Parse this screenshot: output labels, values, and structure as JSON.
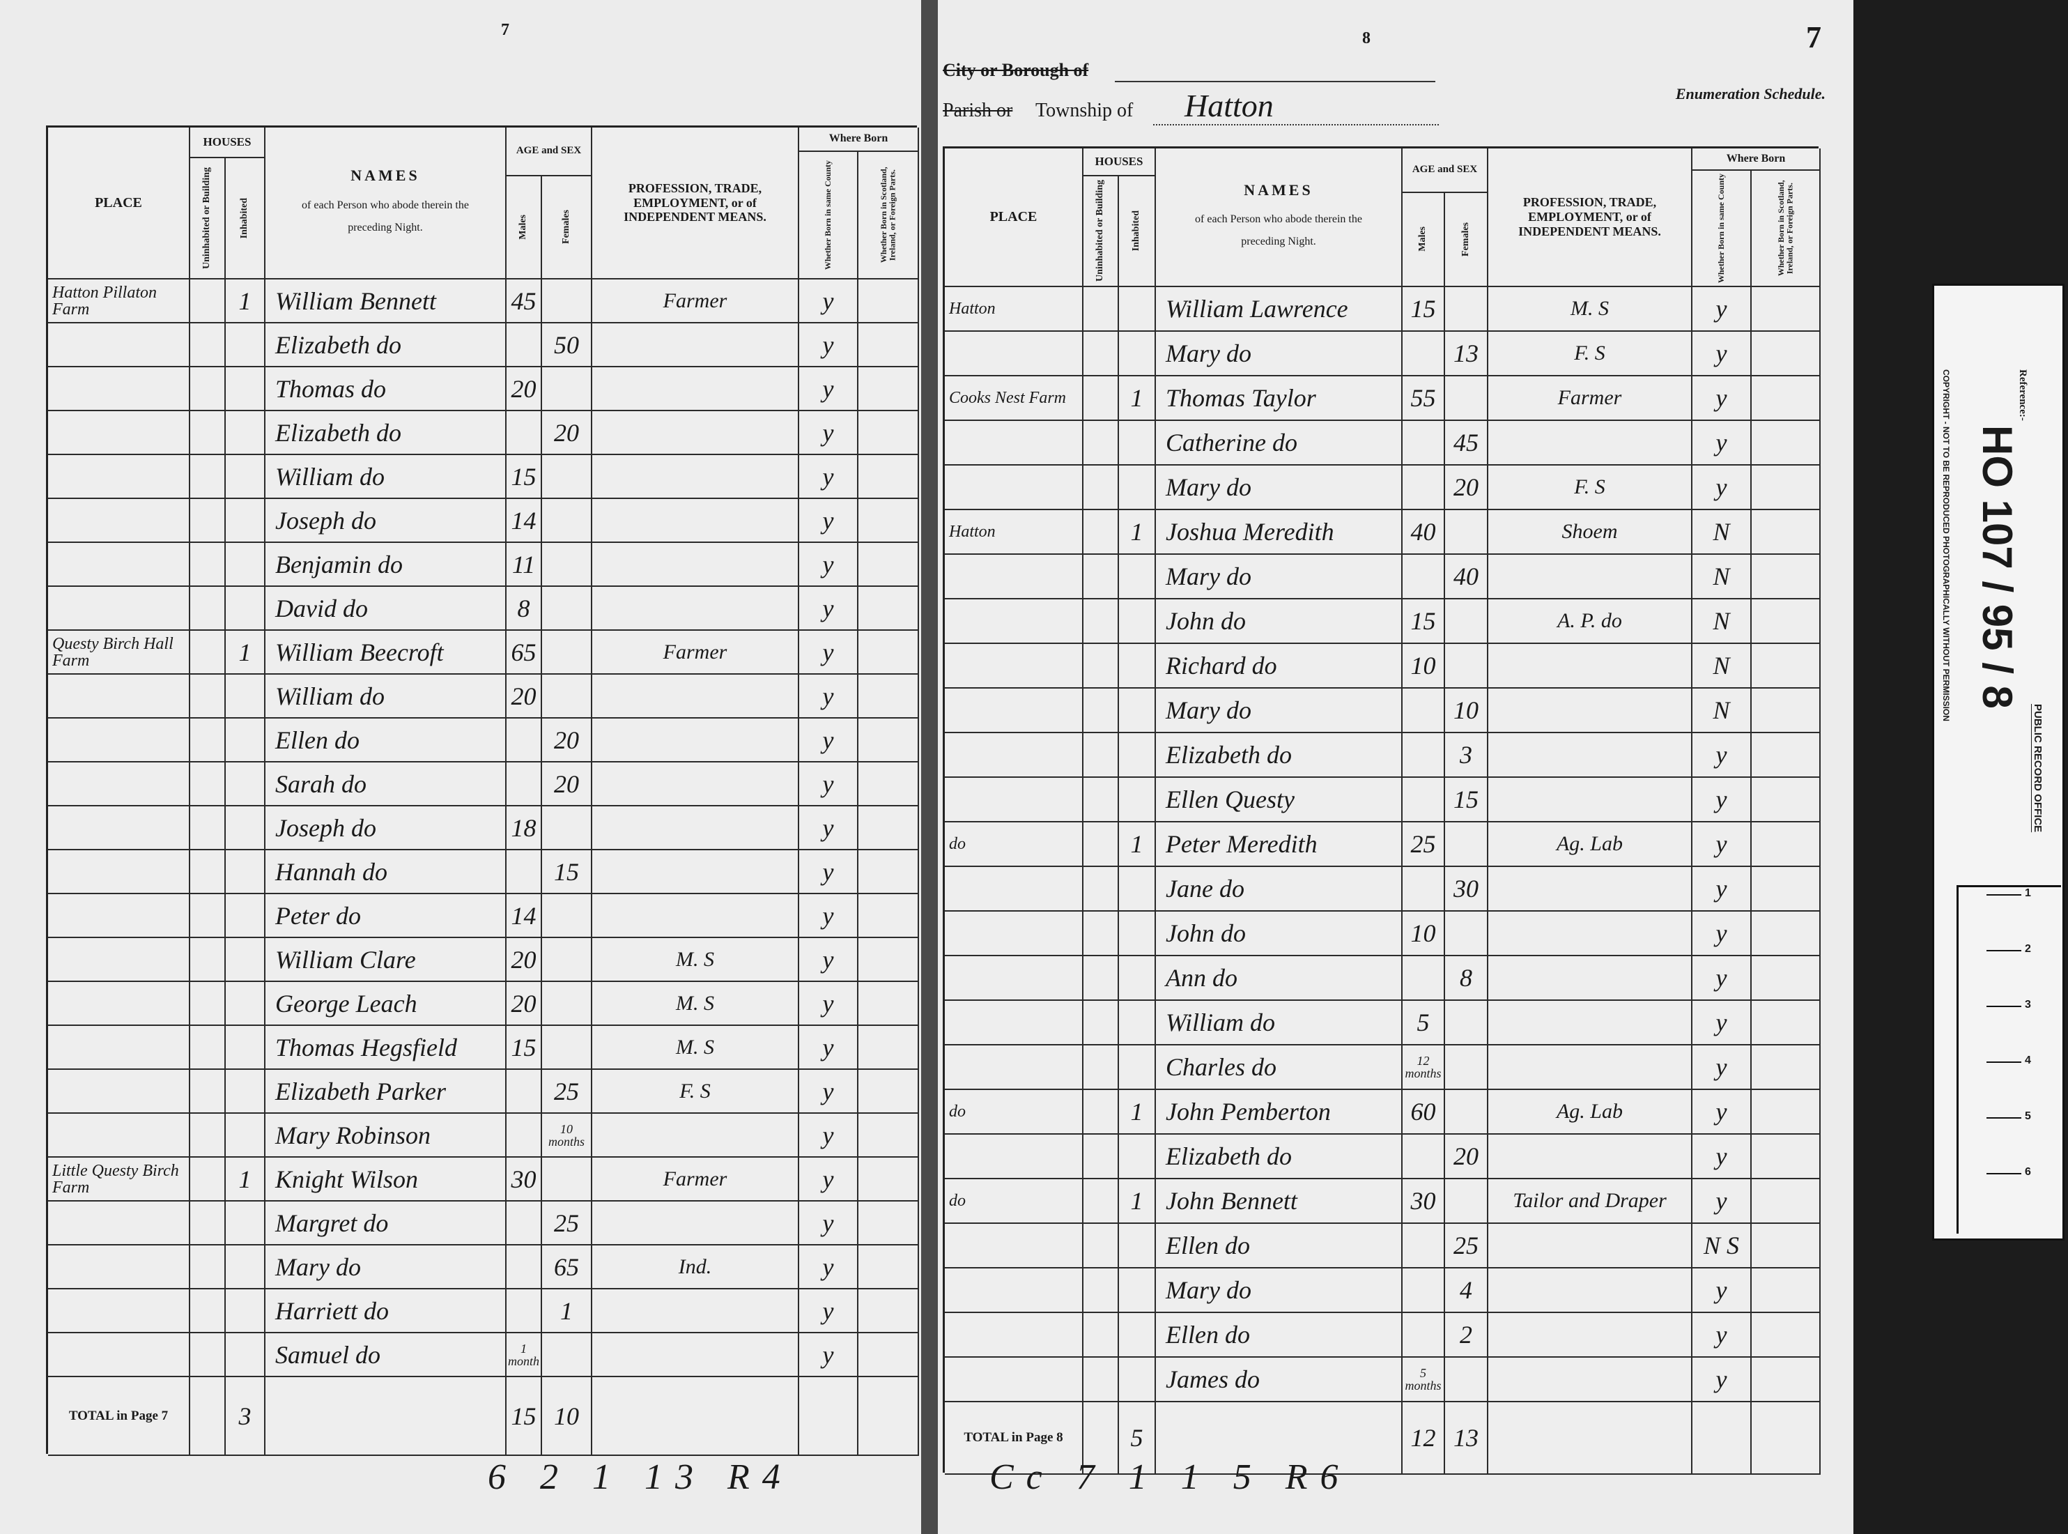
{
  "column_headers": {
    "place": "PLACE",
    "houses": "HOUSES",
    "uninhabited": "Uninhabited or Building",
    "inhabited": "Inhabited",
    "names": "NAMES",
    "names_sub": "of each Person who abode therein the preceding Night.",
    "age_and_sex": "AGE and SEX",
    "males": "Males",
    "females": "Females",
    "profession": "PROFESSION, TRADE, EMPLOYMENT, or of INDEPENDENT MEANS.",
    "where_born": "Where Born",
    "same_county": "Whether Born in same County",
    "foreign": "Whether Born in Scotland, Ireland, or Foreign Parts."
  },
  "heading": {
    "city": "City or Borough of",
    "parish_struck": "Parish or",
    "township": "Township of",
    "township_name": "Hatton",
    "schedule": "Enumeration Schedule.",
    "corner_number": "7"
  },
  "pages": [
    {
      "page_number": "7",
      "rows": [
        [
          "Hatton Pillaton Farm",
          null,
          "1",
          "William Bennett",
          "45",
          null,
          "Farmer",
          "y",
          null
        ],
        [
          null,
          null,
          null,
          "Elizabeth do",
          null,
          "50",
          null,
          "y",
          null
        ],
        [
          null,
          null,
          null,
          "Thomas do",
          "20",
          null,
          null,
          "y",
          null
        ],
        [
          null,
          null,
          null,
          "Elizabeth do",
          null,
          "20",
          null,
          "y",
          null
        ],
        [
          null,
          null,
          null,
          "William do",
          "15",
          null,
          null,
          "y",
          null
        ],
        [
          null,
          null,
          null,
          "Joseph do",
          "14",
          null,
          null,
          "y",
          null
        ],
        [
          null,
          null,
          null,
          "Benjamin do",
          "11",
          null,
          null,
          "y",
          null
        ],
        [
          null,
          null,
          null,
          "David do",
          "8",
          null,
          null,
          "y",
          null
        ],
        [
          "Questy Birch Hall Farm",
          null,
          "1",
          "William Beecroft",
          "65",
          null,
          "Farmer",
          "y",
          null
        ],
        [
          null,
          null,
          null,
          "William do",
          "20",
          null,
          null,
          "y",
          null
        ],
        [
          null,
          null,
          null,
          "Ellen do",
          null,
          "20",
          null,
          "y",
          null
        ],
        [
          null,
          null,
          null,
          "Sarah do",
          null,
          "20",
          null,
          "y",
          null
        ],
        [
          null,
          null,
          null,
          "Joseph do",
          "18",
          null,
          null,
          "y",
          null
        ],
        [
          null,
          null,
          null,
          "Hannah do",
          null,
          "15",
          null,
          "y",
          null
        ],
        [
          null,
          null,
          null,
          "Peter do",
          "14",
          null,
          null,
          "y",
          null
        ],
        [
          null,
          null,
          null,
          "William Clare",
          "20",
          null,
          "M. S",
          "y",
          null
        ],
        [
          null,
          null,
          null,
          "George Leach",
          "20",
          null,
          "M. S",
          "y",
          null
        ],
        [
          null,
          null,
          null,
          "Thomas Hegsfield",
          "15",
          null,
          "M. S",
          "y",
          null
        ],
        [
          null,
          null,
          null,
          "Elizabeth Parker",
          null,
          "25",
          "F. S",
          "y",
          null
        ],
        [
          null,
          null,
          null,
          "Mary Robinson",
          null,
          "10 months",
          null,
          "y",
          null
        ],
        [
          "Little Questy Birch Farm",
          null,
          "1",
          "Knight Wilson",
          "30",
          null,
          "Farmer",
          "y",
          null
        ],
        [
          null,
          null,
          null,
          "Margret do",
          null,
          "25",
          null,
          "y",
          null
        ],
        [
          null,
          null,
          null,
          "Mary do",
          null,
          "65",
          "Ind.",
          "y",
          null
        ],
        [
          null,
          null,
          null,
          "Harriett do",
          null,
          "1",
          null,
          "y",
          null
        ],
        [
          null,
          null,
          null,
          "Samuel do",
          "1 month",
          null,
          null,
          "y",
          null
        ]
      ],
      "total": {
        "label": "TOTAL in Page 7",
        "houses": "3",
        "males": "15",
        "females": "10"
      },
      "margin_note": "6 2 1 13 R4"
    },
    {
      "page_number": "8",
      "rows": [
        [
          "Hatton",
          null,
          null,
          "William Lawrence",
          "15",
          null,
          "M. S",
          "y",
          null
        ],
        [
          null,
          null,
          null,
          "Mary do",
          null,
          "13",
          "F. S",
          "y",
          null
        ],
        [
          "Cooks Nest Farm",
          null,
          "1",
          "Thomas Taylor",
          "55",
          null,
          "Farmer",
          "y",
          null
        ],
        [
          null,
          null,
          null,
          "Catherine do",
          null,
          "45",
          null,
          "y",
          null
        ],
        [
          null,
          null,
          null,
          "Mary do",
          null,
          "20",
          "F. S",
          "y",
          null
        ],
        [
          "Hatton",
          null,
          "1",
          "Joshua Meredith",
          "40",
          null,
          "Shoem",
          "N",
          null
        ],
        [
          null,
          null,
          null,
          "Mary do",
          null,
          "40",
          null,
          "N",
          null
        ],
        [
          null,
          null,
          null,
          "John do",
          "15",
          null,
          "A. P. do",
          "N",
          null
        ],
        [
          null,
          null,
          null,
          "Richard do",
          "10",
          null,
          null,
          "N",
          null
        ],
        [
          null,
          null,
          null,
          "Mary do",
          null,
          "10",
          null,
          "N",
          null
        ],
        [
          null,
          null,
          null,
          "Elizabeth do",
          null,
          "3",
          null,
          "y",
          null
        ],
        [
          null,
          null,
          null,
          "Ellen Questy",
          null,
          "15",
          null,
          "y",
          null
        ],
        [
          "do",
          null,
          "1",
          "Peter Meredith",
          "25",
          null,
          "Ag. Lab",
          "y",
          null
        ],
        [
          null,
          null,
          null,
          "Jane do",
          null,
          "30",
          null,
          "y",
          null
        ],
        [
          null,
          null,
          null,
          "John do",
          "10",
          null,
          null,
          "y",
          null
        ],
        [
          null,
          null,
          null,
          "Ann do",
          null,
          "8",
          null,
          "y",
          null
        ],
        [
          null,
          null,
          null,
          "William do",
          "5",
          null,
          null,
          "y",
          null
        ],
        [
          null,
          null,
          null,
          "Charles do",
          "12 months",
          null,
          null,
          "y",
          null
        ],
        [
          "do",
          null,
          "1",
          "John Pemberton",
          "60",
          null,
          "Ag. Lab",
          "y",
          null
        ],
        [
          null,
          null,
          null,
          "Elizabeth do",
          null,
          "20",
          null,
          "y",
          null
        ],
        [
          "do",
          null,
          "1",
          "John Bennett",
          "30",
          null,
          "Tailor and Draper",
          "y",
          null
        ],
        [
          null,
          null,
          null,
          "Ellen do",
          null,
          "25",
          null,
          "N S",
          null
        ],
        [
          null,
          null,
          null,
          "Mary do",
          null,
          "4",
          null,
          "y",
          null
        ],
        [
          null,
          null,
          null,
          "Ellen do",
          null,
          "2",
          null,
          "y",
          null
        ],
        [
          null,
          null,
          null,
          "James do",
          "5 months",
          null,
          null,
          "y",
          null
        ]
      ],
      "total": {
        "label": "TOTAL in Page 8",
        "houses": "5",
        "males": "12",
        "females": "13"
      },
      "margin_note": "Cc 7 1 1 5 R6"
    }
  ],
  "reference": {
    "label": "Reference:-",
    "code": "HO 107 / 95 / 8",
    "office": "PUBLIC RECORD OFFICE",
    "copyright": "COPYRIGHT - NOT TO BE REPRODUCED PHOTOGRAPHICALLY WITHOUT PERMISSION",
    "ruler_marks": [
      "1",
      "2",
      "3",
      "4",
      "5",
      "6"
    ]
  }
}
